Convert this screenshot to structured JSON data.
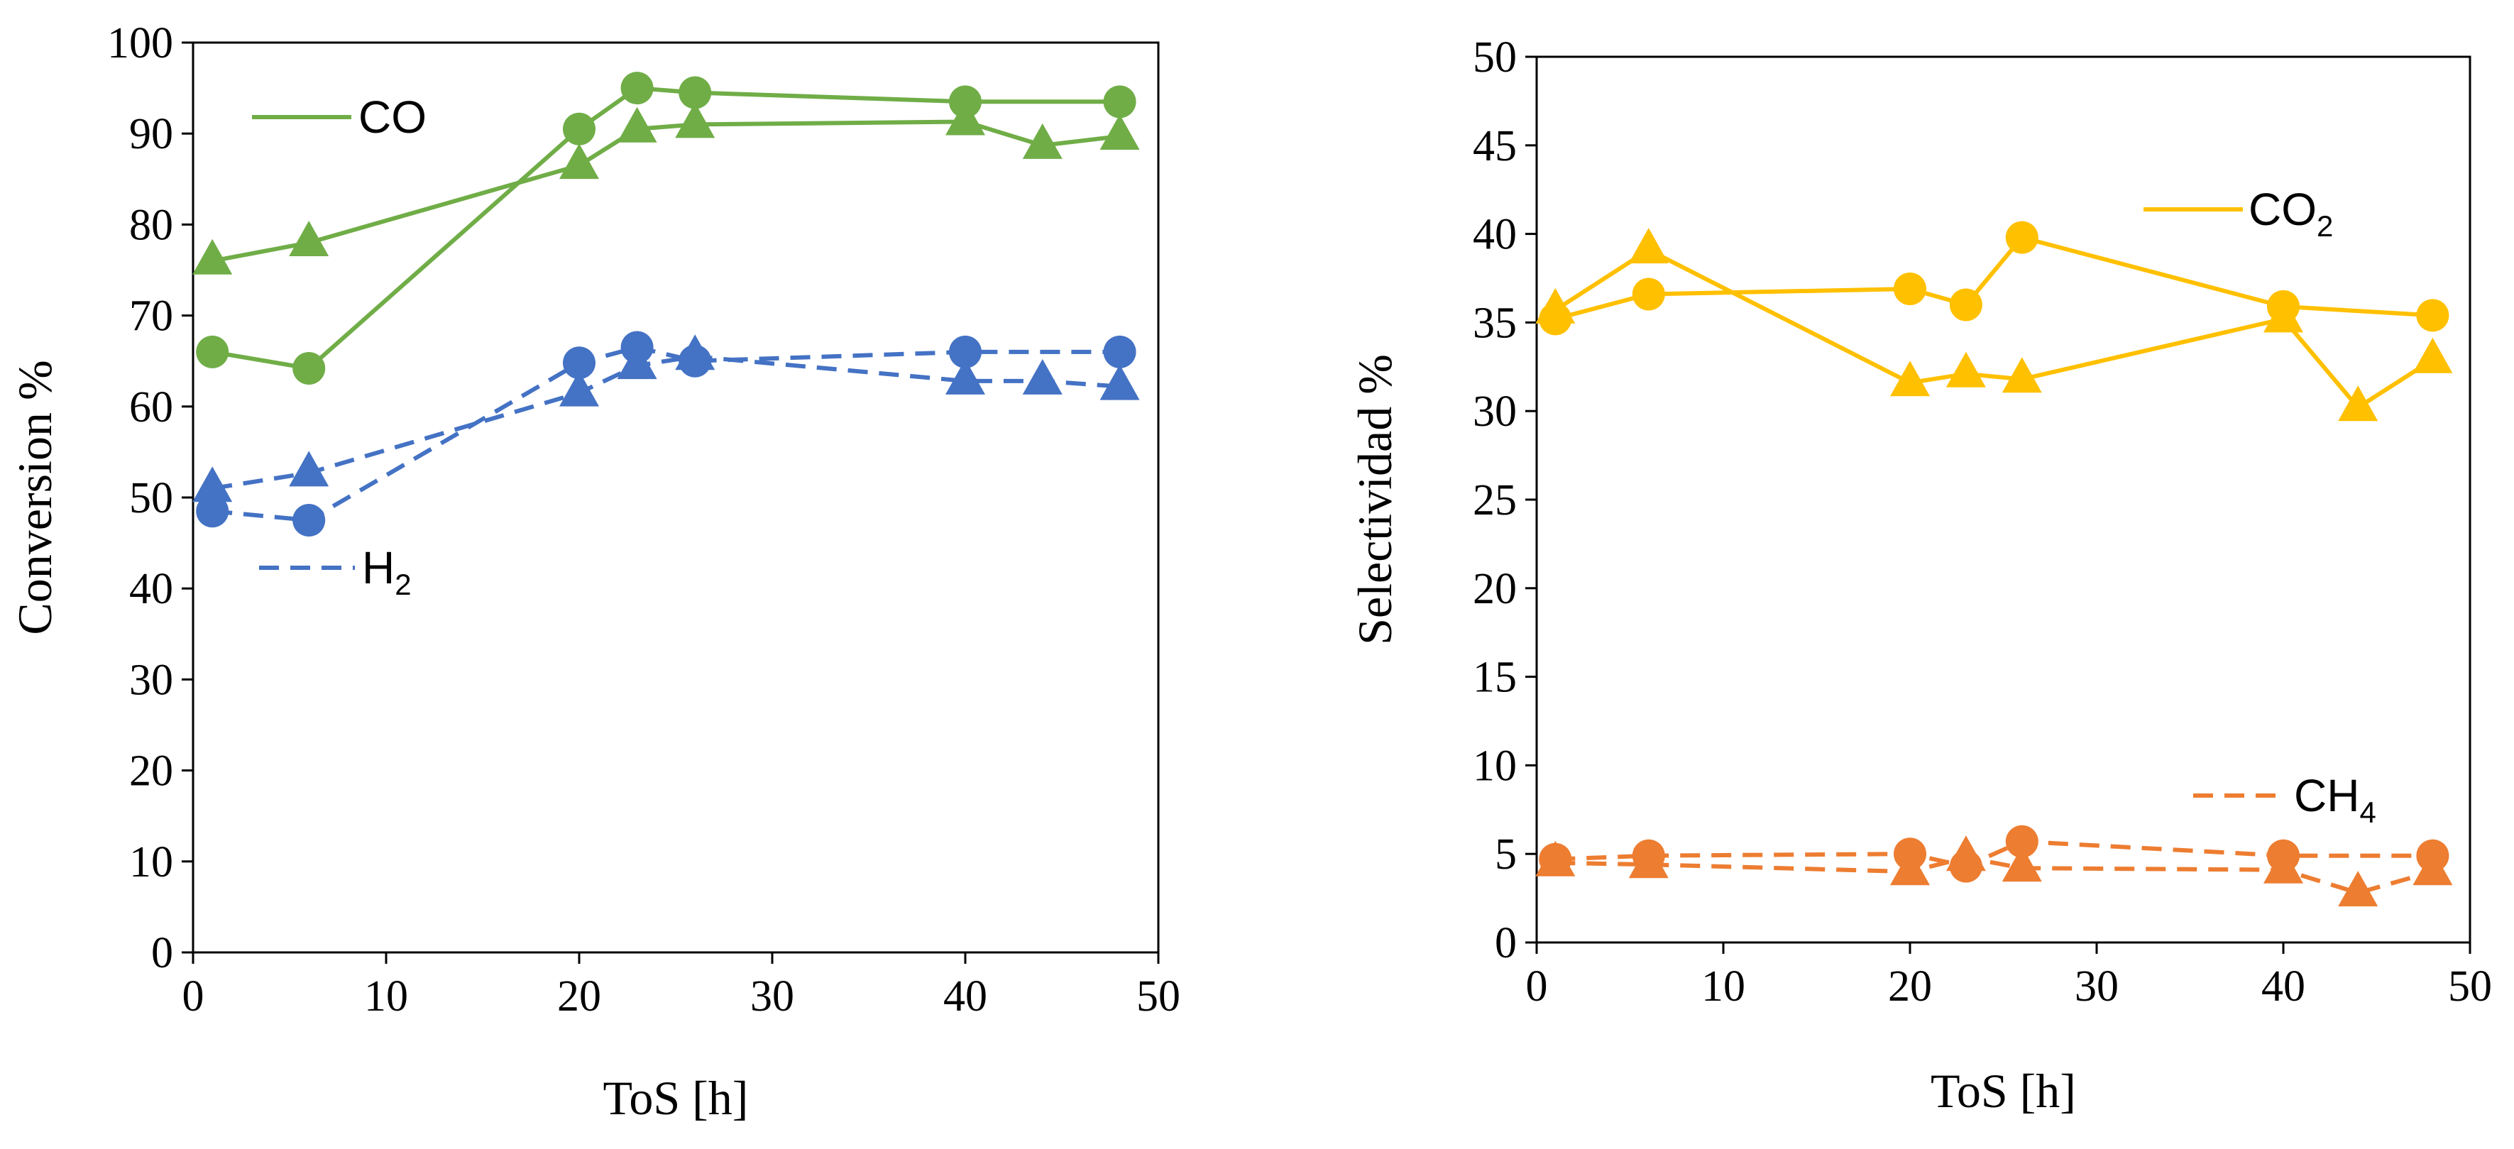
{
  "chart_data": [
    {
      "type": "line",
      "xlabel": "ToS [h]",
      "ylabel": "Conversion %",
      "xlim": [
        0,
        50
      ],
      "ylim": [
        0,
        100
      ],
      "xticks": [
        0,
        10,
        20,
        30,
        40,
        50
      ],
      "yticks": [
        0,
        10,
        20,
        30,
        40,
        50,
        60,
        70,
        80,
        90,
        100
      ],
      "grid": false,
      "legend": [
        {
          "label": "CO",
          "sub": "",
          "color": "#70AD47",
          "dash": false
        },
        {
          "label": "H",
          "sub": "2",
          "color": "#4472C4",
          "dash": true
        }
      ],
      "series": [
        {
          "name": "CO (circles)",
          "color": "#70AD47",
          "dash": false,
          "marker": "circle",
          "x": [
            1,
            6,
            20,
            23,
            26,
            40,
            48
          ],
          "y": [
            66,
            64.2,
            90.5,
            95,
            94.5,
            93.5,
            93.5
          ]
        },
        {
          "name": "CO (triangles)",
          "color": "#70AD47",
          "dash": false,
          "marker": "triangle",
          "x": [
            1,
            6,
            20,
            23,
            26,
            40,
            44,
            48
          ],
          "y": [
            76,
            78,
            86.5,
            90.5,
            91,
            91.3,
            88.7,
            89.7
          ]
        },
        {
          "name": "H2 (circles)",
          "color": "#4472C4",
          "dash": true,
          "marker": "circle",
          "x": [
            1,
            6,
            20,
            23,
            26,
            40,
            48
          ],
          "y": [
            48.5,
            47.5,
            64.8,
            66.5,
            65,
            66,
            66
          ]
        },
        {
          "name": "H2 (triangles)",
          "color": "#4472C4",
          "dash": true,
          "marker": "triangle",
          "x": [
            1,
            6,
            20,
            23,
            26,
            40,
            44,
            48
          ],
          "y": [
            51,
            52.7,
            61.5,
            64.5,
            65.5,
            62.8,
            62.8,
            62.2
          ]
        }
      ]
    },
    {
      "type": "line",
      "xlabel": "ToS [h]",
      "ylabel": "Selectividad %",
      "xlim": [
        0,
        50
      ],
      "ylim": [
        0,
        50
      ],
      "xticks": [
        0,
        10,
        20,
        30,
        40,
        50
      ],
      "yticks": [
        0,
        5,
        10,
        15,
        20,
        25,
        30,
        35,
        40,
        45,
        50
      ],
      "grid": false,
      "legend": [
        {
          "label": "CO",
          "sub": "2",
          "color": "#FFC000",
          "dash": false
        },
        {
          "label": "CH",
          "sub": "4",
          "color": "#ED7D31",
          "dash": true
        }
      ],
      "series": [
        {
          "name": "CO2 (circles)",
          "color": "#FFC000",
          "dash": false,
          "marker": "circle",
          "x": [
            1,
            6,
            20,
            23,
            26,
            40,
            48
          ],
          "y": [
            35.2,
            36.6,
            36.9,
            36,
            39.8,
            35.9,
            35.4
          ]
        },
        {
          "name": "CO2 (triangles)",
          "color": "#FFC000",
          "dash": false,
          "marker": "triangle",
          "x": [
            1,
            6,
            20,
            23,
            26,
            40,
            44,
            48
          ],
          "y": [
            35.7,
            39.1,
            31.6,
            32.1,
            31.8,
            35.2,
            30.2,
            32.9
          ]
        },
        {
          "name": "CH4 (circles)",
          "color": "#ED7D31",
          "dash": true,
          "marker": "circle",
          "x": [
            1,
            6,
            20,
            23,
            26,
            40,
            48
          ],
          "y": [
            4.7,
            4.9,
            5,
            4.3,
            5.7,
            4.9,
            4.9
          ]
        },
        {
          "name": "CH4 (triangles)",
          "color": "#ED7D31",
          "dash": true,
          "marker": "triangle",
          "x": [
            1,
            6,
            20,
            23,
            26,
            40,
            44,
            48
          ],
          "y": [
            4.5,
            4.4,
            4,
            4.8,
            4.2,
            4.1,
            2.8,
            4
          ]
        }
      ]
    }
  ]
}
